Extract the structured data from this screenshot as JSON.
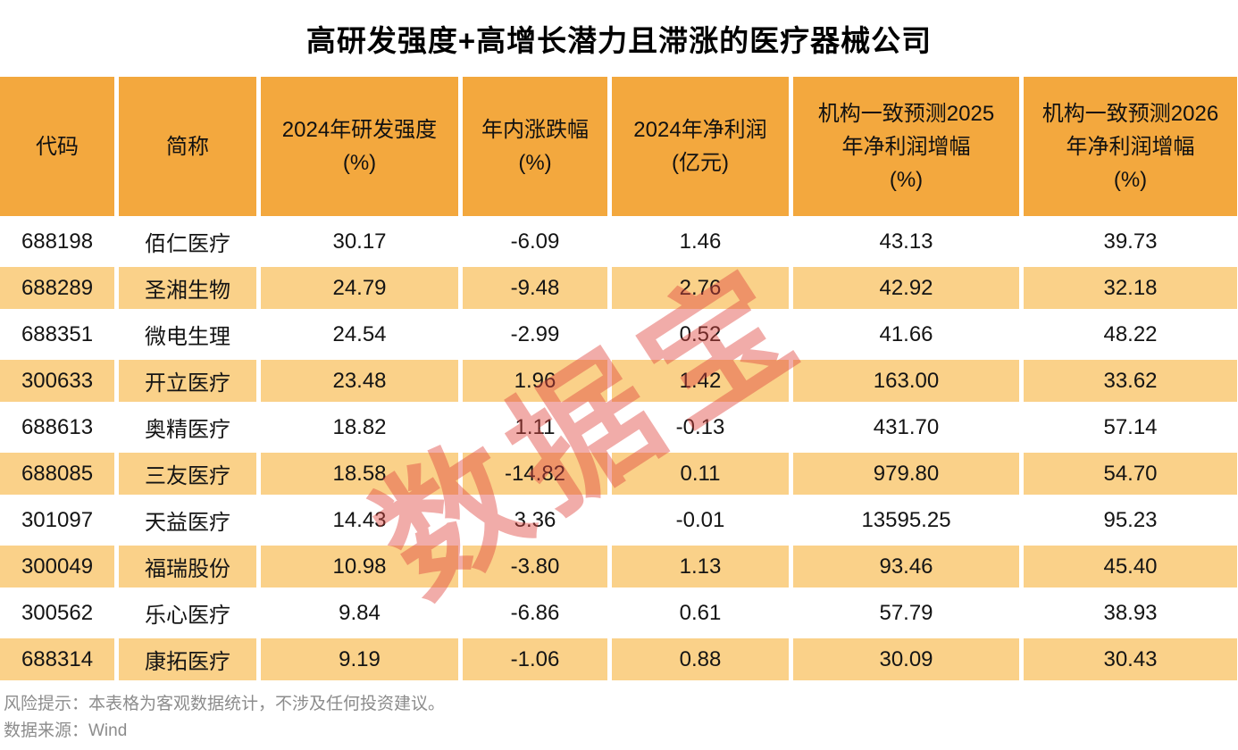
{
  "title": "高研发强度+高增长潜力且滞涨的医疗器械公司",
  "watermark": "数据宝",
  "table": {
    "columns": [
      {
        "label": "代码"
      },
      {
        "label": "简称"
      },
      {
        "label": "2024年研发强度\n(%)"
      },
      {
        "label": "年内涨跌幅\n(%)"
      },
      {
        "label": "2024年净利润\n(亿元)"
      },
      {
        "label": "机构一致预测2025\n年净利润增幅\n(%)"
      },
      {
        "label": "机构一致预测2026\n年净利润增幅\n(%)"
      }
    ],
    "rows": [
      [
        "688198",
        "佰仁医疗",
        "30.17",
        "-6.09",
        "1.46",
        "43.13",
        "39.73"
      ],
      [
        "688289",
        "圣湘生物",
        "24.79",
        "-9.48",
        "2.76",
        "42.92",
        "32.18"
      ],
      [
        "688351",
        "微电生理",
        "24.54",
        "-2.99",
        "0.52",
        "41.66",
        "48.22"
      ],
      [
        "300633",
        "开立医疗",
        "23.48",
        "1.96",
        "1.42",
        "163.00",
        "33.62"
      ],
      [
        "688613",
        "奥精医疗",
        "18.82",
        "1.11",
        "-0.13",
        "431.70",
        "57.14"
      ],
      [
        "688085",
        "三友医疗",
        "18.58",
        "-14.82",
        "0.11",
        "979.80",
        "54.70"
      ],
      [
        "301097",
        "天益医疗",
        "14.43",
        "3.36",
        "-0.01",
        "13595.25",
        "95.23"
      ],
      [
        "300049",
        "福瑞股份",
        "10.98",
        "-3.80",
        "1.13",
        "93.46",
        "45.40"
      ],
      [
        "300562",
        "乐心医疗",
        "9.84",
        "-6.86",
        "0.61",
        "57.79",
        "38.93"
      ],
      [
        "688314",
        "康拓医疗",
        "9.19",
        "-1.06",
        "0.88",
        "30.09",
        "30.43"
      ]
    ]
  },
  "footer": {
    "risk_note": "风险提示：本表格为客观数据统计，不涉及任何投资建议。",
    "source": "数据来源：Wind"
  },
  "colors": {
    "header_bg": "#F3A83E",
    "row_alt_bg": "#FAD189",
    "row_bg": "#FFFFFF",
    "title_color": "#000000",
    "footer_color": "#8C8C8C",
    "watermark_color": "#E04640"
  },
  "chart_data": {
    "type": "table",
    "title": "高研发强度+高增长潜力且滞涨的医疗器械公司",
    "columns": [
      "代码",
      "简称",
      "2024年研发强度(%)",
      "年内涨跌幅(%)",
      "2024年净利润(亿元)",
      "机构一致预测2025年净利润增幅(%)",
      "机构一致预测2026年净利润增幅(%)"
    ],
    "rows": [
      [
        "688198",
        "佰仁医疗",
        30.17,
        -6.09,
        1.46,
        43.13,
        39.73
      ],
      [
        "688289",
        "圣湘生物",
        24.79,
        -9.48,
        2.76,
        42.92,
        32.18
      ],
      [
        "688351",
        "微电生理",
        24.54,
        -2.99,
        0.52,
        41.66,
        48.22
      ],
      [
        "300633",
        "开立医疗",
        23.48,
        1.96,
        1.42,
        163.0,
        33.62
      ],
      [
        "688613",
        "奥精医疗",
        18.82,
        1.11,
        -0.13,
        431.7,
        57.14
      ],
      [
        "688085",
        "三友医疗",
        18.58,
        -14.82,
        0.11,
        979.8,
        54.7
      ],
      [
        "301097",
        "天益医疗",
        14.43,
        3.36,
        -0.01,
        13595.25,
        95.23
      ],
      [
        "300049",
        "福瑞股份",
        10.98,
        -3.8,
        1.13,
        93.46,
        45.4
      ],
      [
        "300562",
        "乐心医疗",
        9.84,
        -6.86,
        0.61,
        57.79,
        38.93
      ],
      [
        "688314",
        "康拓医疗",
        9.19,
        -1.06,
        0.88,
        30.09,
        30.43
      ]
    ],
    "source": "Wind"
  }
}
